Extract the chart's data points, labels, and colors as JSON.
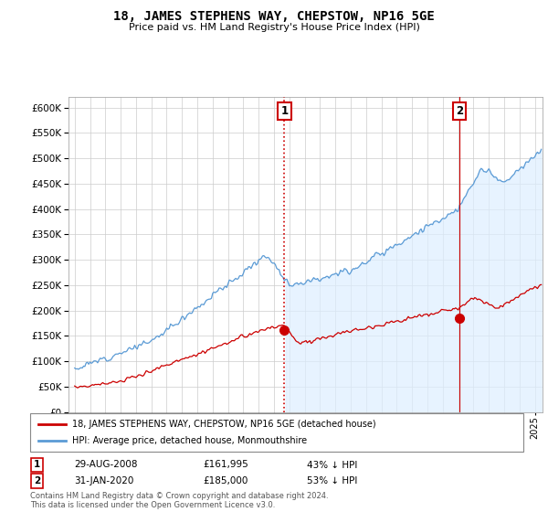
{
  "title": "18, JAMES STEPHENS WAY, CHEPSTOW, NP16 5GE",
  "subtitle": "Price paid vs. HM Land Registry's House Price Index (HPI)",
  "legend_line1": "18, JAMES STEPHENS WAY, CHEPSTOW, NP16 5GE (detached house)",
  "legend_line2": "HPI: Average price, detached house, Monmouthshire",
  "footnote": "Contains HM Land Registry data © Crown copyright and database right 2024.\nThis data is licensed under the Open Government Licence v3.0.",
  "marker1_date": "29-AUG-2008",
  "marker1_price": "£161,995",
  "marker1_hpi": "43% ↓ HPI",
  "marker2_date": "31-JAN-2020",
  "marker2_price": "£185,000",
  "marker2_hpi": "53% ↓ HPI",
  "hpi_color": "#5b9bd5",
  "hpi_fill_color": "#ddeeff",
  "price_color": "#cc0000",
  "marker_color": "#cc0000",
  "ylim": [
    0,
    620000
  ],
  "yticks": [
    0,
    50000,
    100000,
    150000,
    200000,
    250000,
    300000,
    350000,
    400000,
    450000,
    500000,
    550000,
    600000
  ],
  "xlim_start": 1994.6,
  "xlim_end": 2025.5,
  "marker1_x": 2008.67,
  "marker2_x": 2020.08,
  "marker1_price_y": 161995,
  "marker2_price_y": 185000
}
